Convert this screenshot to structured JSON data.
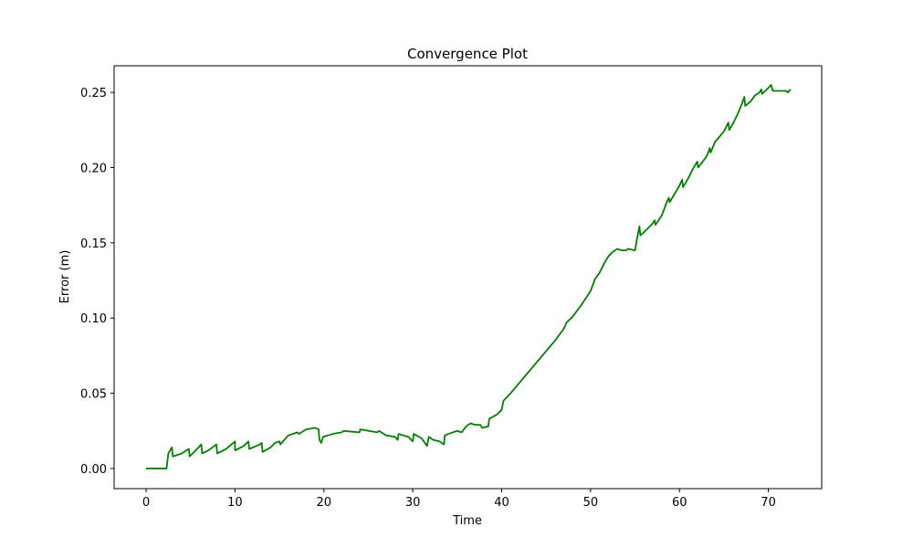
{
  "chart_data": {
    "type": "line",
    "title": "Convergence Plot",
    "x_label": "Time",
    "y_label": "Error (m)",
    "x": [
      0,
      2.3,
      2.5,
      2.8,
      2.9,
      3.0,
      4,
      4.8,
      4.9,
      5.9,
      6.2,
      6.3,
      7,
      7.9,
      8,
      9,
      10,
      10,
      11,
      11.5,
      11.6,
      12.8,
      13,
      13.1,
      14,
      14.5,
      15,
      15.1,
      16,
      17,
      17.2,
      18,
      19,
      19.4,
      19.5,
      19.7,
      19.9,
      21,
      22,
      22.2,
      24,
      24.1,
      26,
      26.2,
      27,
      28,
      28.3,
      28.4,
      29.5,
      30,
      30.1,
      31,
      31.6,
      31.8,
      32.3,
      33,
      33.5,
      33.6,
      34,
      35,
      35.5,
      36,
      36.5,
      37,
      37.6,
      37.8,
      38.5,
      38.6,
      39.5,
      40,
      40.2,
      41,
      42,
      43,
      44,
      45,
      46,
      47,
      47.3,
      48,
      49,
      50,
      50.5,
      51,
      51.5,
      52,
      52.5,
      53,
      53.5,
      54,
      54.2,
      55,
      55.2,
      55.5,
      55.6,
      56,
      57,
      57.2,
      57.3,
      58,
      58.5,
      58.8,
      58.9,
      59.5,
      60,
      60.3,
      60.4,
      61,
      61.5,
      62,
      62.1,
      63,
      63.3,
      63.4,
      63.5,
      64,
      65,
      65.5,
      65.6,
      66,
      66.5,
      67,
      67.3,
      67.4,
      68,
      68.5,
      69,
      69.2,
      69.3,
      70,
      70.3,
      70.5,
      72,
      72.2,
      72.5
    ],
    "series": [
      {
        "name": "Error",
        "color": "#008000",
        "values": [
          0,
          0,
          0.01,
          0.013,
          0.014,
          0.008,
          0.01,
          0.013,
          0.008,
          0.014,
          0.016,
          0.01,
          0.012,
          0.016,
          0.01,
          0.013,
          0.018,
          0.012,
          0.015,
          0.018,
          0.013,
          0.016,
          0.017,
          0.011,
          0.014,
          0.017,
          0.018,
          0.016,
          0.022,
          0.024,
          0.023,
          0.026,
          0.027,
          0.026,
          0.019,
          0.017,
          0.021,
          0.023,
          0.024,
          0.025,
          0.024,
          0.026,
          0.024,
          0.025,
          0.022,
          0.021,
          0.019,
          0.023,
          0.021,
          0.018,
          0.023,
          0.02,
          0.015,
          0.021,
          0.019,
          0.018,
          0.016,
          0.022,
          0.023,
          0.025,
          0.024,
          0.028,
          0.03,
          0.029,
          0.029,
          0.027,
          0.028,
          0.033,
          0.036,
          0.039,
          0.045,
          0.05,
          0.057,
          0.064,
          0.071,
          0.078,
          0.085,
          0.093,
          0.097,
          0.101,
          0.109,
          0.118,
          0.126,
          0.13,
          0.136,
          0.141,
          0.144,
          0.146,
          0.145,
          0.145,
          0.146,
          0.145,
          0.152,
          0.161,
          0.155,
          0.157,
          0.163,
          0.165,
          0.162,
          0.168,
          0.176,
          0.18,
          0.177,
          0.183,
          0.188,
          0.192,
          0.187,
          0.193,
          0.199,
          0.204,
          0.2,
          0.207,
          0.211,
          0.213,
          0.21,
          0.217,
          0.224,
          0.23,
          0.225,
          0.229,
          0.235,
          0.242,
          0.247,
          0.241,
          0.244,
          0.248,
          0.25,
          0.252,
          0.249,
          0.253,
          0.255,
          0.251,
          0.251,
          0.25,
          0.252
        ]
      }
    ],
    "xlim": [
      -3.6,
      76
    ],
    "ylim": [
      -0.0134,
      0.2677
    ],
    "xticks": [
      0,
      10,
      20,
      30,
      40,
      50,
      60,
      70
    ],
    "yticks": [
      {
        "value": 0,
        "label": "0.00"
      },
      {
        "value": 0.05,
        "label": "0.05"
      },
      {
        "value": 0.1,
        "label": "0.10"
      },
      {
        "value": 0.15,
        "label": "0.15"
      },
      {
        "value": 0.2,
        "label": "0.20"
      },
      {
        "value": 0.25,
        "label": "0.25"
      }
    ]
  }
}
